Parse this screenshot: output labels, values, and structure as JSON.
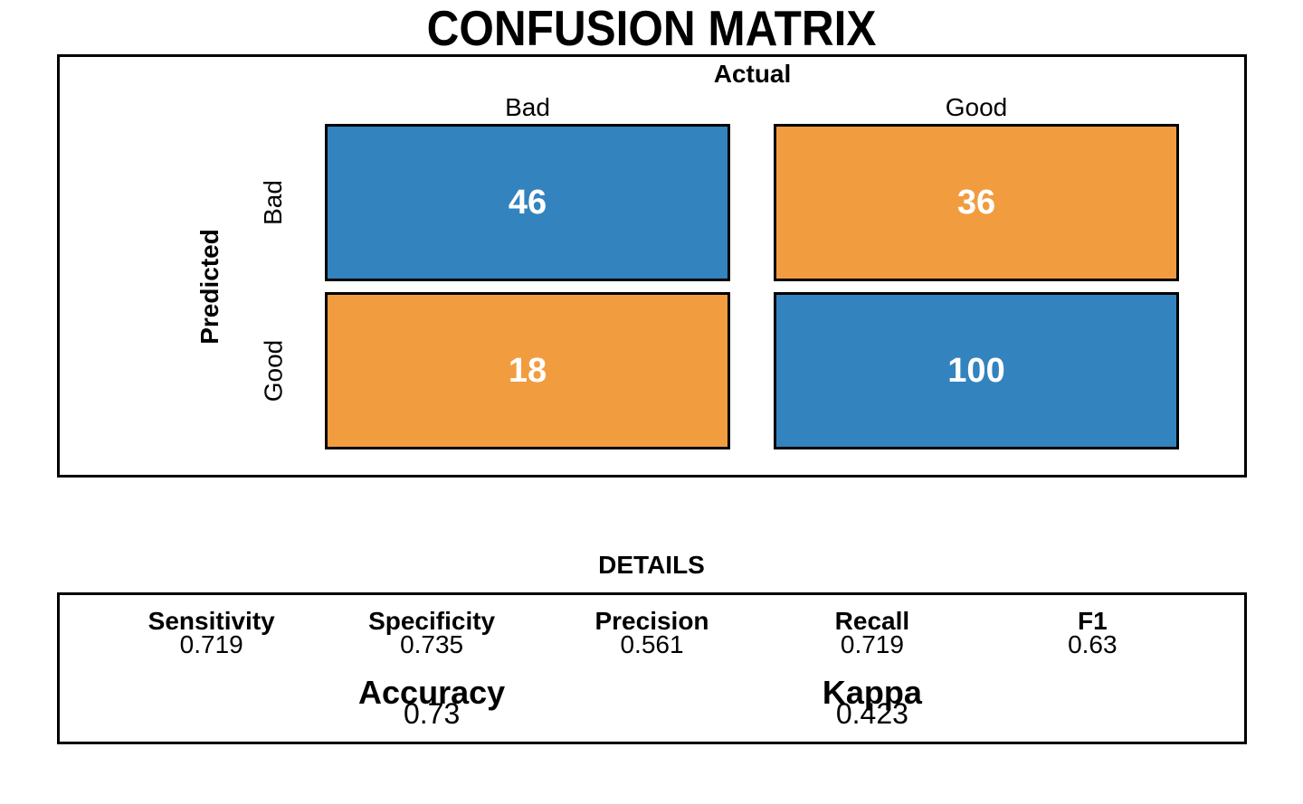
{
  "title": "CONFUSION MATRIX",
  "colors": {
    "match_fill": "#3383BE",
    "mismatch_fill": "#F29C40",
    "cell_text": "#FFFFFF",
    "border": "#000000",
    "background": "#FFFFFF"
  },
  "matrix": {
    "x_axis_title": "Actual",
    "y_axis_title": "Predicted",
    "col_labels": [
      "Bad",
      "Good"
    ],
    "row_labels": [
      "Bad",
      "Good"
    ],
    "cells": [
      {
        "row": "Bad",
        "col": "Bad",
        "value": "46",
        "fill": "#3383BE"
      },
      {
        "row": "Bad",
        "col": "Good",
        "value": "36",
        "fill": "#F29C40"
      },
      {
        "row": "Good",
        "col": "Bad",
        "value": "18",
        "fill": "#F29C40"
      },
      {
        "row": "Good",
        "col": "Good",
        "value": "100",
        "fill": "#3383BE"
      }
    ]
  },
  "details": {
    "title": "DETAILS",
    "metrics": [
      {
        "label": "Sensitivity",
        "value": "0.719"
      },
      {
        "label": "Specificity",
        "value": "0.735"
      },
      {
        "label": "Precision",
        "value": "0.561"
      },
      {
        "label": "Recall",
        "value": "0.719"
      },
      {
        "label": "F1",
        "value": "0.63"
      }
    ],
    "summary": [
      {
        "label": "Accuracy",
        "value": "0.73"
      },
      {
        "label": "Kappa",
        "value": "0.423"
      }
    ]
  },
  "chart_data": {
    "type": "heatmap",
    "title": "CONFUSION MATRIX",
    "xlabel": "Actual",
    "ylabel": "Predicted",
    "x_categories": [
      "Bad",
      "Good"
    ],
    "y_categories": [
      "Bad",
      "Good"
    ],
    "matrix": [
      [
        46,
        36
      ],
      [
        18,
        100
      ]
    ],
    "cell_colors": [
      [
        "#3383BE",
        "#F29C40"
      ],
      [
        "#F29C40",
        "#3383BE"
      ]
    ],
    "legend": "none",
    "grid": false,
    "metrics": {
      "Sensitivity": 0.719,
      "Specificity": 0.735,
      "Precision": 0.561,
      "Recall": 0.719,
      "F1": 0.63,
      "Accuracy": 0.73,
      "Kappa": 0.423
    }
  }
}
